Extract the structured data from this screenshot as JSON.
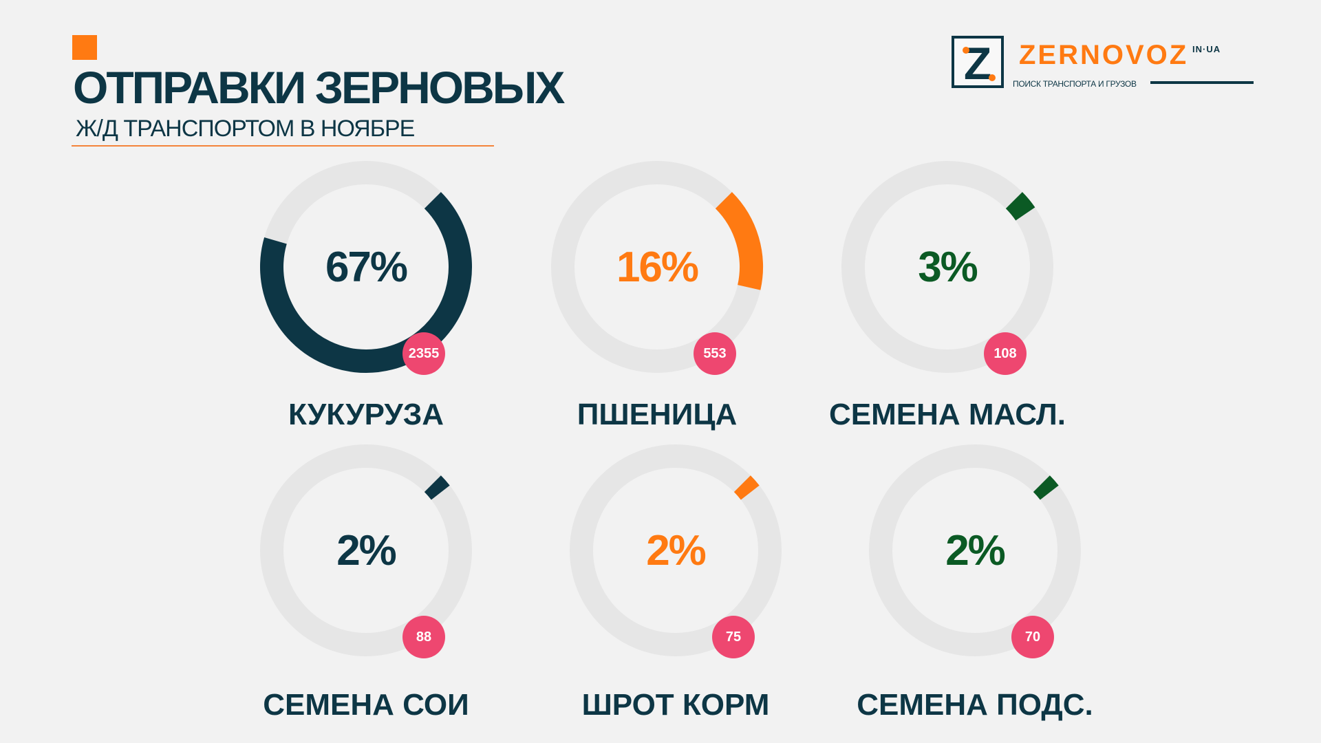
{
  "header": {
    "title": "ОТПРАВКИ ЗЕРНОВЫХ",
    "subtitle": "Ж/Д ТРАНСПОРТОМ В НОЯБРЕ"
  },
  "logo": {
    "letter": "Z",
    "name": "ZERNOVOZ",
    "tld": "IN·UA",
    "tagline": "ПОИСК ТРАНСПОРТА И ГРУЗОВ"
  },
  "colors": {
    "dark": "#0d3645",
    "orange": "#ff7a12",
    "green": "#0b5a24",
    "track": "#e6e6e6",
    "badge": "#ee4770"
  },
  "chart_data": {
    "type": "donut",
    "title": "ОТПРАВКИ ЗЕРНОВЫХ",
    "subtitle": "Ж/Д ТРАНСПОРТОМ В НОЯБРЕ",
    "items": [
      {
        "label": "КУКУРУЗА",
        "percent": 67,
        "percent_label": "67%",
        "count": 2355,
        "count_label": "2355",
        "color": "#0d3645"
      },
      {
        "label": "ПШЕНИЦА",
        "percent": 16,
        "percent_label": "16%",
        "count": 553,
        "count_label": "553",
        "color": "#ff7a12"
      },
      {
        "label": "СЕМЕНА МАСЛ.",
        "percent": 3,
        "percent_label": "3%",
        "count": 108,
        "count_label": "108",
        "color": "#0b5a24"
      },
      {
        "label": "СЕМЕНА СОИ",
        "percent": 2,
        "percent_label": "2%",
        "count": 88,
        "count_label": "88",
        "color": "#0d3645"
      },
      {
        "label": "ШРОТ КОРМ",
        "percent": 2,
        "percent_label": "2%",
        "count": 75,
        "count_label": "75",
        "color": "#ff7a12"
      },
      {
        "label": "СЕМЕНА ПОДС.",
        "percent": 2,
        "percent_label": "2%",
        "count": 70,
        "count_label": "70",
        "color": "#0b5a24"
      }
    ]
  }
}
